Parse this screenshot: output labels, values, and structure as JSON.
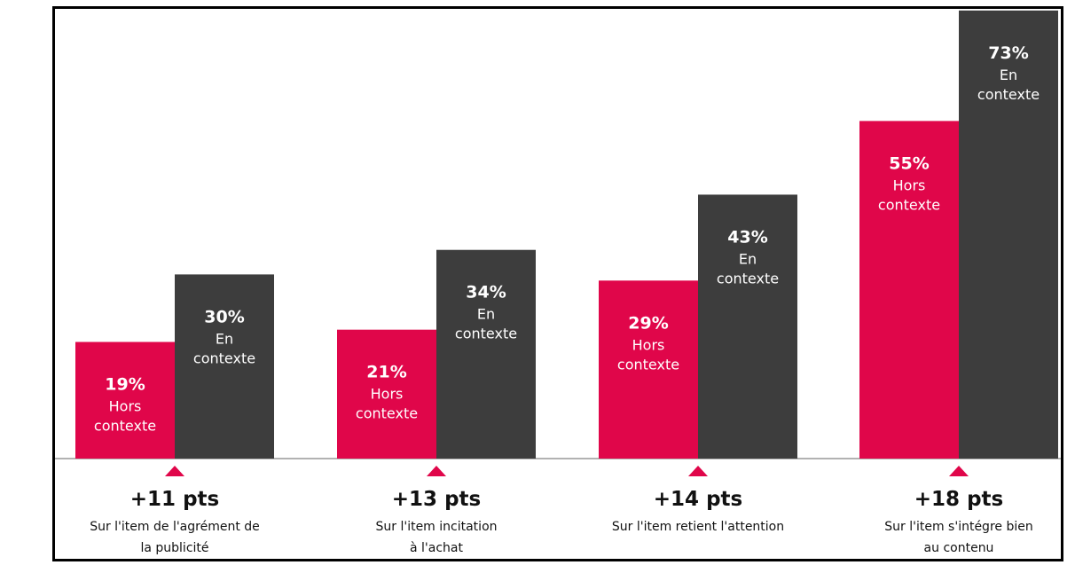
{
  "colors": {
    "hors": "#e0064a",
    "en": "#3d3d3d",
    "marker": "#e0064a",
    "baseline": "#666666"
  },
  "chart_data": {
    "type": "bar",
    "title": "",
    "xlabel": "",
    "ylabel": "",
    "ylim": [
      0,
      73
    ],
    "grid": false,
    "legend": "none",
    "categories": [
      {
        "diff": "+11 pts",
        "desc": [
          "Sur l'item de l'agrément de",
          "la publicité"
        ]
      },
      {
        "diff": "+13 pts",
        "desc": [
          "Sur l'item incitation",
          "à l'achat"
        ]
      },
      {
        "diff": "+14 pts",
        "desc": [
          "Sur l'item retient l'attention"
        ]
      },
      {
        "diff": "+18 pts",
        "desc": [
          "Sur l'item s'intégre bien",
          "au contenu"
        ]
      }
    ],
    "series": [
      {
        "values": [
          19,
          21,
          29,
          55
        ],
        "labels": [
          "19%",
          "21%",
          "29%",
          "55%"
        ],
        "sub": [
          "Hors",
          "contexte"
        ]
      },
      {
        "values": [
          30,
          34,
          43,
          73
        ],
        "labels": [
          "30%",
          "34%",
          "43%",
          "73%"
        ],
        "sub": [
          "En",
          "contexte"
        ]
      }
    ]
  }
}
